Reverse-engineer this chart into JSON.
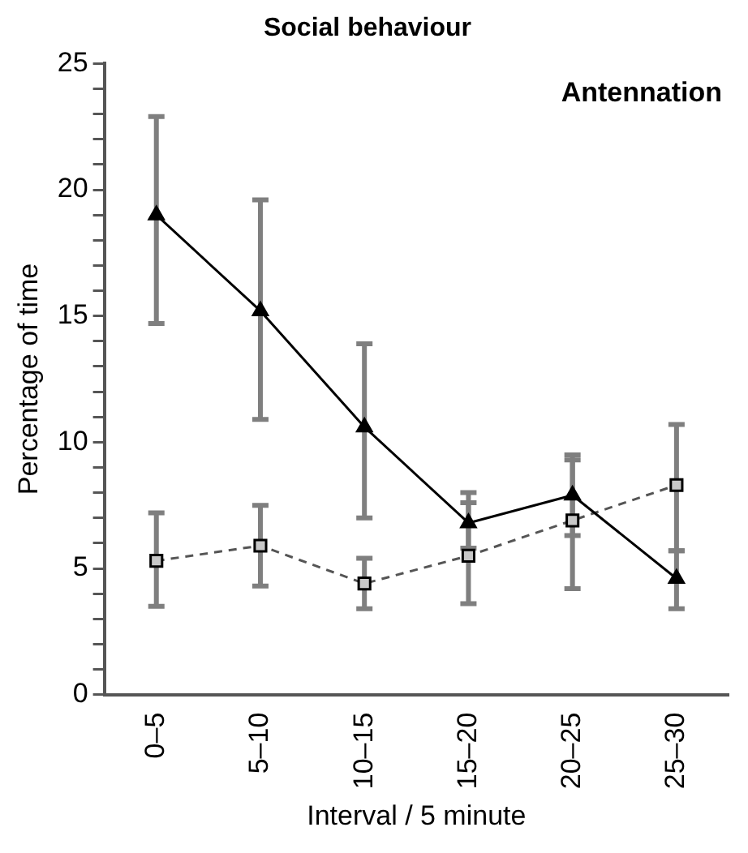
{
  "chart_data": {
    "type": "line",
    "title": "Social behaviour",
    "xlabel": "Interval / 5 minute",
    "ylabel": "Percentage of time",
    "annotations": [
      "Antennation"
    ],
    "categories": [
      "0–5",
      "5–10",
      "10–15",
      "15–20",
      "20–25",
      "25–30"
    ],
    "series": [
      {
        "color": "#000000",
        "marker": "triangle",
        "line_style": "solid",
        "values": [
          19.0,
          15.2,
          10.6,
          6.8,
          7.9,
          4.6
        ],
        "errors": [
          [
            14.7,
            22.9
          ],
          [
            10.9,
            19.6
          ],
          [
            7.0,
            13.9
          ],
          [
            5.8,
            8.0
          ],
          [
            6.3,
            9.5
          ],
          [
            3.4,
            5.7
          ]
        ]
      },
      {
        "color": "#555555",
        "marker": "square",
        "line_style": "dashed",
        "values": [
          5.3,
          5.9,
          4.4,
          5.5,
          6.9,
          8.3
        ],
        "errors": [
          [
            3.5,
            7.2
          ],
          [
            4.3,
            7.5
          ],
          [
            3.4,
            5.4
          ],
          [
            3.6,
            7.6
          ],
          [
            4.2,
            9.3
          ],
          [
            5.7,
            10.7
          ]
        ]
      }
    ],
    "ylim": [
      0,
      25
    ],
    "yticks": [
      0,
      {
        "value": 1,
        "label": null
      },
      {
        "value": 2,
        "label": null
      },
      {
        "value": 3,
        "label": null
      },
      {
        "value": 4,
        "label": null
      },
      5,
      {
        "value": 6,
        "label": null
      },
      {
        "value": 7,
        "label": null
      },
      {
        "value": 8,
        "label": null
      },
      {
        "value": 9,
        "label": null
      },
      10,
      {
        "value": 11,
        "label": null
      },
      {
        "value": 12,
        "label": null
      },
      {
        "value": 13,
        "label": null
      },
      {
        "value": 14,
        "label": null
      },
      15,
      {
        "value": 16,
        "label": null
      },
      {
        "value": 17,
        "label": null
      },
      {
        "value": 18,
        "label": null
      },
      {
        "value": 19,
        "label": null
      },
      20,
      {
        "value": 21,
        "label": null
      },
      {
        "value": 22,
        "label": null
      },
      {
        "value": 23,
        "label": null
      },
      {
        "value": 24,
        "label": null
      },
      25
    ],
    "grid": false,
    "legend": false
  }
}
